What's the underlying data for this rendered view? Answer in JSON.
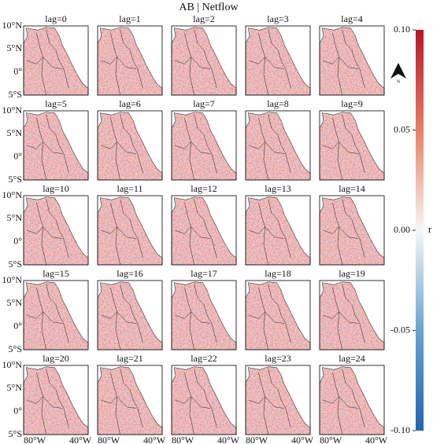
{
  "title": "AB | Netflow",
  "panels": [
    "lag=0",
    "lag=1",
    "lag=2",
    "lag=3",
    "lag=4",
    "lag=5",
    "lag=6",
    "lag=7",
    "lag=8",
    "lag=9",
    "lag=10",
    "lag=11",
    "lag=12",
    "lag=13",
    "lag=14",
    "lag=15",
    "lag=16",
    "lag=17",
    "lag=18",
    "lag=19",
    "lag=20",
    "lag=21",
    "lag=22",
    "lag=23",
    "lag=24"
  ],
  "y_labels": [
    "10°N",
    "5°N",
    "0°",
    "5°S"
  ],
  "x_labels": [
    "80°W",
    "40°W"
  ],
  "north_label": "N",
  "colorbar": {
    "label": "r",
    "range": [
      -0.1,
      0.1
    ],
    "ticks": [
      {
        "value": 0.1,
        "label": "0.10"
      },
      {
        "value": 0.05,
        "label": "0.05"
      },
      {
        "value": 0,
        "label": "0.00"
      },
      {
        "value": -0.05,
        "label": "-0.05"
      },
      {
        "value": -0.1,
        "label": "-0.10"
      }
    ]
  }
}
